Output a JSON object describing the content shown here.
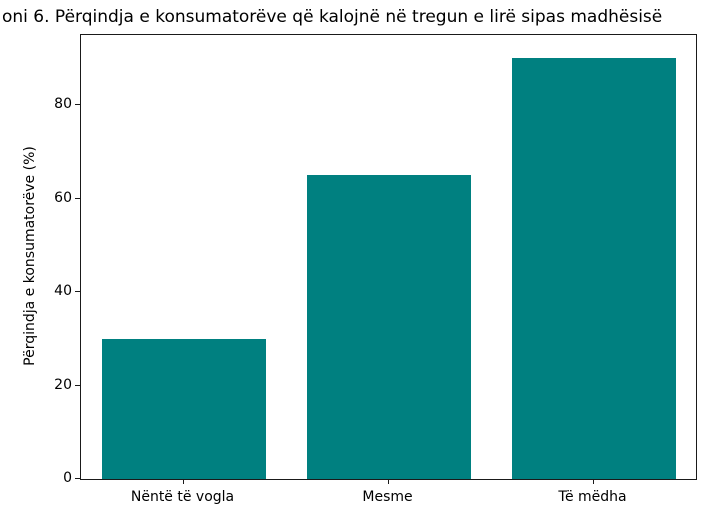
{
  "chart_data": {
    "type": "bar",
    "title": "oni 6. Përqindja e konsumatorëve që kalojnë në tregun e lirë sipas madhësisë",
    "categories": [
      "Nëntë të vogla",
      "Mesme",
      "Të mëdha"
    ],
    "values": [
      30,
      65,
      90
    ],
    "xlabel": "",
    "ylabel": "Përqindja e konsumatorëve (%)",
    "ylim": [
      0,
      95
    ],
    "yticks": [
      0,
      20,
      40,
      60,
      80
    ],
    "bar_color": "#008080",
    "bar_width_fraction": 0.8,
    "grid": false,
    "legend": null
  }
}
